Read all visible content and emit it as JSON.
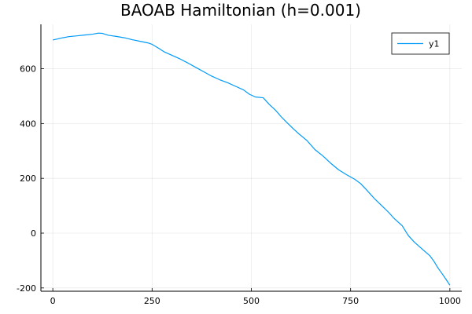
{
  "chart_data": {
    "type": "line",
    "title": "BAOAB Hamiltonian (h=0.001)",
    "xlabel": "",
    "ylabel": "",
    "xlim": [
      -30,
      1030
    ],
    "ylim": [
      -212,
      762
    ],
    "xticks": [
      0,
      250,
      500,
      750,
      1000
    ],
    "xtick_labels": [
      "0",
      "250",
      "500",
      "750",
      "1000"
    ],
    "yticks": [
      -200,
      0,
      200,
      400,
      600
    ],
    "ytick_labels": [
      "-200",
      "0",
      "200",
      "400",
      "600"
    ],
    "grid": true,
    "legend_position": "top-right",
    "series": [
      {
        "name": "y1",
        "color": "#009af9",
        "x": [
          0,
          10,
          25,
          40,
          60,
          80,
          100,
          115,
          125,
          140,
          160,
          180,
          200,
          220,
          240,
          250,
          265,
          280,
          300,
          320,
          340,
          360,
          380,
          400,
          420,
          440,
          460,
          480,
          495,
          510,
          530,
          545,
          560,
          575,
          590,
          605,
          620,
          640,
          660,
          680,
          700,
          720,
          740,
          760,
          775,
          790,
          810,
          830,
          845,
          860,
          880,
          895,
          910,
          930,
          950,
          960,
          970,
          980,
          990,
          1000
        ],
        "y": [
          705,
          708,
          713,
          717,
          720,
          723,
          726,
          730,
          729,
          722,
          718,
          713,
          706,
          700,
          694,
          689,
          676,
          662,
          649,
          636,
          621,
          605,
          589,
          573,
          560,
          549,
          536,
          523,
          507,
          497,
          494,
          470,
          450,
          425,
          403,
          382,
          362,
          338,
          305,
          282,
          255,
          231,
          213,
          197,
          181,
          158,
          126,
          98,
          77,
          53,
          27,
          -8,
          -32,
          -58,
          -83,
          -103,
          -127,
          -147,
          -168,
          -190
        ]
      }
    ]
  }
}
